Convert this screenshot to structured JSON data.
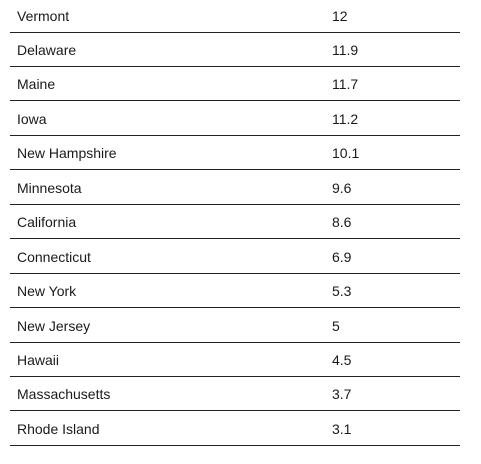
{
  "table": {
    "rows": [
      [
        "Vermont",
        12
      ],
      [
        "Delaware",
        11.9
      ],
      [
        "Maine",
        11.7
      ],
      [
        "Iowa",
        11.2
      ],
      [
        "New Hampshire",
        10.1
      ],
      [
        "Minnesota",
        9.6
      ],
      [
        "California",
        8.6
      ],
      [
        "Connecticut",
        6.9
      ],
      [
        "New York",
        5.3
      ],
      [
        "New Jersey",
        5
      ],
      [
        "Hawaii",
        4.5
      ],
      [
        "Massachusetts",
        3.7
      ],
      [
        "Rhode Island",
        3.1
      ]
    ]
  }
}
